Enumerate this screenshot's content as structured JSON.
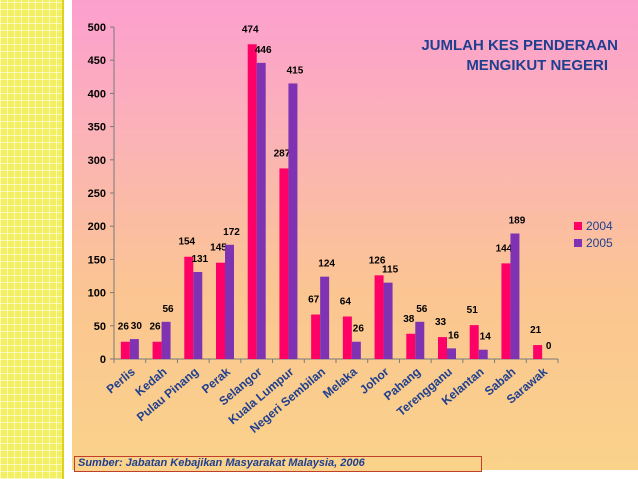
{
  "chart_data": {
    "type": "bar",
    "title": [
      "JUMLAH KES PENDERAAN",
      "MENGIKUT NEGERI"
    ],
    "categories": [
      "Perlis",
      "Kedah",
      "Pulau Pinang",
      "Perak",
      "Selangor",
      "Kuala Lumpur",
      "Negeri Sembilan",
      "Melaka",
      "Johor",
      "Pahang",
      "Terengganu",
      "Kelantan",
      "Sabah",
      "Sarawak"
    ],
    "series": [
      {
        "name": "2004",
        "color": "#ff0066",
        "values": [
          26,
          26,
          154,
          145,
          474,
          287,
          67,
          64,
          126,
          38,
          33,
          51,
          144,
          21
        ]
      },
      {
        "name": "2005",
        "color": "#7f33b3",
        "values": [
          30,
          56,
          131,
          172,
          446,
          415,
          124,
          26,
          115,
          56,
          16,
          14,
          189,
          0
        ]
      }
    ],
    "ylim": [
      0,
      500
    ],
    "yticks": [
      0,
      50,
      100,
      150,
      200,
      250,
      300,
      350,
      400,
      450,
      500
    ],
    "legend_position": "right",
    "grid": false,
    "source": "Sumber: Jabatan Kebajikan Masyarakat Malaysia, 2006"
  }
}
